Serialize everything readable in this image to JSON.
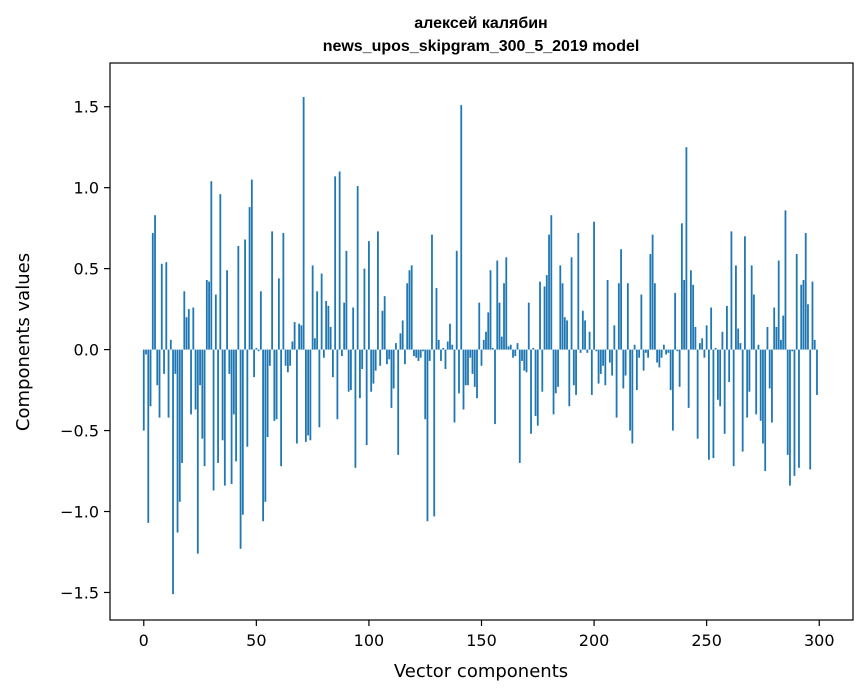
{
  "chart_data": {
    "type": "bar",
    "title": "алексей калябин",
    "subtitle": "news_upos_skipgram_300_5_2019 model",
    "xlabel": "Vector components",
    "ylabel": "Components values",
    "xlim": [
      -15,
      315
    ],
    "ylim": [
      -1.67,
      1.77
    ],
    "xticks": [
      0,
      50,
      100,
      150,
      200,
      250,
      300
    ],
    "xtick_labels": [
      "0",
      "50",
      "100",
      "150",
      "200",
      "250",
      "300"
    ],
    "yticks": [
      -1.5,
      -1.0,
      -0.5,
      0.0,
      0.5,
      1.0,
      1.5
    ],
    "ytick_labels": [
      "−1.5",
      "−1.0",
      "−0.5",
      "0.0",
      "0.5",
      "1.0",
      "1.5"
    ],
    "grid": false,
    "bar_color": "#1f77b4",
    "values": [
      -0.5,
      -0.03,
      -1.07,
      -0.35,
      0.72,
      0.83,
      -0.22,
      -0.42,
      0.53,
      -0.15,
      0.54,
      -0.42,
      0.06,
      -1.51,
      -0.15,
      -1.13,
      -0.94,
      -0.7,
      0.36,
      0.2,
      0.25,
      -0.4,
      0.26,
      -0.37,
      -1.26,
      -0.22,
      -0.55,
      -0.72,
      0.43,
      0.42,
      1.04,
      -0.87,
      0.34,
      -0.7,
      0.96,
      -0.56,
      -0.84,
      0.49,
      -0.15,
      -0.83,
      -0.4,
      -0.69,
      0.64,
      -1.23,
      -1.02,
      0.68,
      -0.6,
      0.88,
      1.05,
      -0.17,
      0.01,
      -0.01,
      0.36,
      -1.06,
      -0.94,
      -0.54,
      -0.1,
      0.73,
      -0.44,
      -0.43,
      0.44,
      -0.72,
      0.72,
      -0.1,
      -0.14,
      -0.1,
      0.05,
      0.17,
      -0.58,
      0.16,
      0.15,
      1.56,
      -0.57,
      -0.53,
      -0.56,
      0.52,
      0.07,
      0.36,
      -0.48,
      0.47,
      -0.05,
      0.3,
      0.27,
      0.14,
      -0.17,
      1.07,
      -0.43,
      1.1,
      -0.04,
      0.29,
      0.61,
      -0.26,
      -0.25,
      0.26,
      -0.73,
      1.01,
      -0.3,
      -0.12,
      0.5,
      -0.59,
      0.67,
      -0.26,
      -0.21,
      -0.13,
      0.73,
      -0.1,
      0.24,
      0.33,
      -0.09,
      -0.06,
      -0.36,
      -0.24,
      0.04,
      -0.65,
      0.1,
      0.18,
      -0.09,
      0.41,
      0.49,
      0.52,
      -0.04,
      -0.05,
      -0.07,
      -0.05,
      -0.01,
      -0.43,
      -1.06,
      -0.07,
      0.71,
      -1.03,
      0.38,
      0.06,
      -0.07,
      0.01,
      -0.12,
      0.05,
      0.16,
      0.03,
      -0.45,
      0.61,
      -0.27,
      1.51,
      -0.37,
      -0.22,
      -0.22,
      -0.05,
      -0.15,
      -0.23,
      -0.3,
      0.29,
      -0.1,
      0.06,
      0.11,
      0.23,
      0.49,
      0.01,
      -0.46,
      0.55,
      0.29,
      0.08,
      0.41,
      0.57,
      0.02,
      0.03,
      -0.05,
      -0.04,
      0.04,
      -0.7,
      -0.07,
      -0.13,
      -0.14,
      0.29,
      -0.52,
      0.01,
      -0.41,
      -0.47,
      0.42,
      -0.26,
      0.39,
      0.46,
      0.71,
      0.83,
      -0.4,
      -0.27,
      -0.23,
      0.52,
      0.41,
      0.2,
      0.18,
      -0.35,
      0.57,
      -0.22,
      -0.28,
      0.72,
      -0.02,
      0.24,
      0.18,
      -0.02,
      0.11,
      -0.28,
      0.79,
      -0.01,
      -0.21,
      -0.15,
      -0.1,
      -0.22,
      0.43,
      -0.08,
      -0.16,
      0.15,
      -0.42,
      0.41,
      0.62,
      -0.24,
      -0.16,
      0.41,
      -0.5,
      -0.58,
      0.03,
      -0.25,
      -0.05,
      0.34,
      -0.13,
      -0.02,
      -0.05,
      0.59,
      0.71,
      0.41,
      -0.08,
      -0.11,
      -0.05,
      0.03,
      -0.03,
      -0.02,
      -0.25,
      -0.5,
      0.35,
      -0.01,
      -0.23,
      0.78,
      0.43,
      1.25,
      -0.36,
      0.49,
      0.4,
      0.14,
      -0.55,
      0.04,
      0.07,
      -0.05,
      0.15,
      -0.68,
      0.26,
      -0.67,
      0.01,
      -0.31,
      -0.35,
      0.11,
      -0.52,
      0.27,
      -0.2,
      0.73,
      -0.72,
      0.52,
      0.13,
      0.04,
      -0.63,
      0.7,
      -0.42,
      -0.26,
      0.52,
      0.34,
      -0.4,
      0.03,
      -0.44,
      -0.58,
      -0.75,
      0.14,
      -0.24,
      -0.45,
      0.26,
      0.14,
      0.55,
      0.06,
      0.21,
      0.86,
      -0.65,
      -0.84,
      -0.01,
      -0.78,
      0.59,
      -0.73,
      0.4,
      0.43,
      0.72,
      0.28,
      -0.74,
      0.42,
      0.06,
      -0.28
    ]
  }
}
